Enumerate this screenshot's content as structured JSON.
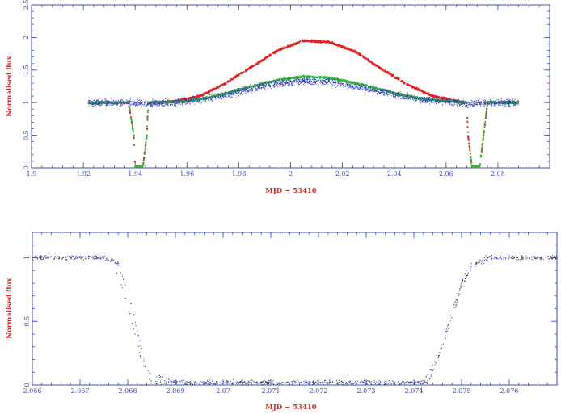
{
  "colors": {
    "axis": "#3f4fb8",
    "label": "#e02626",
    "series_red": "#e32222",
    "series_green": "#2fb83a",
    "series_blue": "#2e3bb0",
    "series_dark": "#333333"
  },
  "chart_data": [
    {
      "type": "scatter",
      "xlabel": "MJD − 53410",
      "ylabel": "Normalised flux",
      "xlim": [
        1.9,
        2.1
      ],
      "ylim": [
        0,
        2.5
      ],
      "xticks": [
        1.9,
        1.92,
        1.94,
        1.96,
        1.98,
        2,
        2.02,
        2.04,
        2.06,
        2.08
      ],
      "xticklabels": [
        "1.9",
        "1.92",
        "1.94",
        "1.96",
        "1.98",
        "2",
        "2.02",
        "2.04",
        "2.06",
        "2.08"
      ],
      "yticks": [
        0,
        0.5,
        1,
        1.5,
        2,
        2.5
      ],
      "yticklabels": [
        "0",
        "0.5",
        "1",
        "1.5",
        "2",
        "2.5"
      ],
      "grid": false,
      "series": [
        {
          "color": "#e32222",
          "x": [
            1.922,
            1.93,
            1.9375,
            1.9395,
            1.94,
            1.943,
            1.9445,
            1.945,
            1.955,
            1.965,
            1.975,
            1.985,
            1.995,
            2.005,
            2.015,
            2.025,
            2.035,
            2.045,
            2.055,
            2.065,
            2.068,
            2.0685,
            2.07,
            2.073,
            2.0745,
            2.076,
            2.082,
            2.088
          ],
          "y": [
            1.0,
            1.0,
            1.0,
            0.5,
            0.02,
            0.02,
            0.5,
            1.0,
            1.02,
            1.1,
            1.3,
            1.55,
            1.8,
            1.95,
            1.93,
            1.78,
            1.52,
            1.28,
            1.1,
            1.02,
            1.0,
            0.5,
            0.02,
            0.02,
            0.5,
            1.0,
            1.0,
            1.0
          ]
        },
        {
          "color": "#2fb83a",
          "x": [
            1.922,
            1.93,
            1.9375,
            1.9395,
            1.94,
            1.943,
            1.9445,
            1.945,
            1.955,
            1.965,
            1.975,
            1.985,
            1.995,
            2.005,
            2.015,
            2.025,
            2.035,
            2.045,
            2.055,
            2.065,
            2.068,
            2.0685,
            2.07,
            2.073,
            2.0745,
            2.076,
            2.082,
            2.088
          ],
          "y": [
            1.0,
            1.0,
            1.0,
            0.5,
            0.02,
            0.02,
            0.5,
            1.0,
            1.01,
            1.05,
            1.14,
            1.25,
            1.35,
            1.4,
            1.38,
            1.3,
            1.2,
            1.1,
            1.04,
            1.01,
            1.0,
            0.5,
            0.02,
            0.02,
            0.5,
            1.0,
            1.0,
            1.0
          ]
        },
        {
          "color": "#2e3bb0",
          "x": [
            1.922,
            1.93,
            1.938,
            1.9445,
            1.955,
            1.965,
            1.975,
            1.985,
            1.995,
            2.005,
            2.015,
            2.025,
            2.035,
            2.045,
            2.055,
            2.065,
            2.068,
            2.076,
            2.082,
            2.088
          ],
          "y": [
            1.0,
            1.0,
            1.0,
            0.98,
            1.0,
            1.04,
            1.12,
            1.22,
            1.3,
            1.33,
            1.32,
            1.25,
            1.17,
            1.08,
            1.03,
            1.0,
            0.98,
            1.0,
            1.0,
            1.0
          ]
        }
      ]
    },
    {
      "type": "scatter",
      "xlabel": "MJD − 53410",
      "ylabel": "Normalised flux",
      "xlim": [
        2.066,
        2.077
      ],
      "ylim": [
        0,
        1.2
      ],
      "xticks": [
        2.066,
        2.067,
        2.068,
        2.069,
        2.07,
        2.071,
        2.072,
        2.073,
        2.074,
        2.075,
        2.076
      ],
      "xticklabels": [
        "2.066",
        "2.067",
        "2.068",
        "2.069",
        "2.07",
        "2.071",
        "2.072",
        "2.073",
        "2.074",
        "2.075",
        "2.076"
      ],
      "yticks": [
        0,
        0.5,
        1
      ],
      "yticklabels": [
        "0",
        "0.5",
        "1"
      ],
      "grid": false,
      "series": [
        {
          "color": "#333333",
          "x": [
            2.066,
            2.0665,
            2.067,
            2.0675,
            2.0677,
            2.068,
            2.0683,
            2.0685,
            2.069,
            2.07,
            2.071,
            2.072,
            2.073,
            2.074,
            2.0743,
            2.0746,
            2.0749,
            2.0752,
            2.0755,
            2.076,
            2.077
          ],
          "y": [
            1.0,
            1.0,
            1.0,
            1.0,
            0.98,
            0.62,
            0.18,
            0.02,
            0.02,
            0.02,
            0.02,
            0.02,
            0.02,
            0.02,
            0.02,
            0.3,
            0.66,
            0.94,
            1.0,
            1.0,
            1.0
          ]
        },
        {
          "color": "#2e3bb0",
          "x": [
            2.066,
            2.0667,
            2.0674,
            2.0678,
            2.0681,
            2.0684,
            2.069,
            2.071,
            2.073,
            2.0742,
            2.0745,
            2.0748,
            2.0751,
            2.0756,
            2.0762,
            2.077
          ],
          "y": [
            1.01,
            1.0,
            1.0,
            0.96,
            0.6,
            0.1,
            0.02,
            0.02,
            0.02,
            0.02,
            0.22,
            0.58,
            0.9,
            1.0,
            1.0,
            1.0
          ]
        }
      ]
    }
  ]
}
